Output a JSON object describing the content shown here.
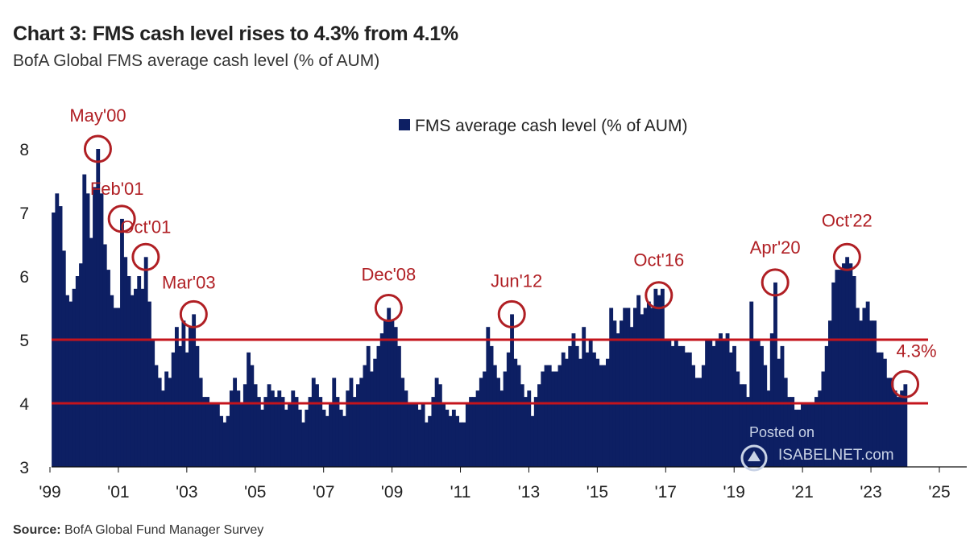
{
  "header": {
    "title": "Chart 3: FMS cash level rises to 4.3% from 4.1%",
    "subtitle": "BofA Global FMS average cash level (% of AUM)"
  },
  "footer": {
    "source_label": "Source:",
    "source_text": "BofA Global Fund Manager Survey"
  },
  "watermark": {
    "posted": "Posted on",
    "brand": "ISABELNET.com"
  },
  "colors": {
    "bars": "#0d1f63",
    "reference_lines": "#c4141c",
    "annotation": "#b01f24"
  },
  "chart_data": {
    "type": "bar",
    "legend": "FMS average cash level (% of AUM)",
    "legend_position": "top-center",
    "ylim": [
      3,
      8
    ],
    "yticks": [
      3,
      4,
      5,
      6,
      7,
      8
    ],
    "xticks": [
      "'99",
      "'01",
      "'03",
      "'05",
      "'07",
      "'09",
      "'11",
      "'13",
      "'15",
      "'17",
      "'19",
      "'21",
      "'23",
      "'25"
    ],
    "xrange": [
      1999.0,
      2025.0
    ],
    "grid": false,
    "reference_lines": [
      4.0,
      5.0
    ],
    "series": [
      {
        "name": "FMS average cash level (% of AUM)",
        "points": [
          [
            1999.1,
            7.0
          ],
          [
            1999.2,
            7.3
          ],
          [
            1999.3,
            7.1
          ],
          [
            1999.4,
            6.4
          ],
          [
            1999.5,
            5.7
          ],
          [
            1999.6,
            5.6
          ],
          [
            1999.7,
            5.8
          ],
          [
            1999.8,
            6.0
          ],
          [
            1999.9,
            6.2
          ],
          [
            2000.0,
            7.6
          ],
          [
            2000.1,
            7.3
          ],
          [
            2000.2,
            6.6
          ],
          [
            2000.3,
            7.4
          ],
          [
            2000.4,
            8.0
          ],
          [
            2000.5,
            7.3
          ],
          [
            2000.6,
            6.5
          ],
          [
            2000.7,
            6.1
          ],
          [
            2000.8,
            5.7
          ],
          [
            2000.9,
            5.5
          ],
          [
            2001.0,
            5.5
          ],
          [
            2001.1,
            6.9
          ],
          [
            2001.2,
            6.3
          ],
          [
            2001.3,
            6.0
          ],
          [
            2001.4,
            5.7
          ],
          [
            2001.5,
            5.8
          ],
          [
            2001.6,
            6.0
          ],
          [
            2001.7,
            5.8
          ],
          [
            2001.8,
            6.3
          ],
          [
            2001.9,
            5.6
          ],
          [
            2002.0,
            5.0
          ],
          [
            2002.1,
            4.6
          ],
          [
            2002.2,
            4.4
          ],
          [
            2002.3,
            4.2
          ],
          [
            2002.4,
            4.5
          ],
          [
            2002.5,
            4.4
          ],
          [
            2002.6,
            4.8
          ],
          [
            2002.7,
            5.2
          ],
          [
            2002.8,
            4.9
          ],
          [
            2002.9,
            5.3
          ],
          [
            2003.0,
            4.8
          ],
          [
            2003.1,
            5.2
          ],
          [
            2003.2,
            5.4
          ],
          [
            2003.3,
            4.9
          ],
          [
            2003.4,
            4.4
          ],
          [
            2003.5,
            4.1
          ],
          [
            2003.6,
            4.1
          ],
          [
            2003.7,
            4.0
          ],
          [
            2003.8,
            4.0
          ],
          [
            2003.9,
            4.0
          ],
          [
            2004.0,
            3.8
          ],
          [
            2004.1,
            3.7
          ],
          [
            2004.2,
            3.8
          ],
          [
            2004.3,
            4.2
          ],
          [
            2004.4,
            4.4
          ],
          [
            2004.5,
            4.2
          ],
          [
            2004.6,
            4.0
          ],
          [
            2004.7,
            4.3
          ],
          [
            2004.8,
            4.8
          ],
          [
            2004.9,
            4.6
          ],
          [
            2005.0,
            4.3
          ],
          [
            2005.1,
            4.1
          ],
          [
            2005.2,
            3.9
          ],
          [
            2005.3,
            4.1
          ],
          [
            2005.4,
            4.3
          ],
          [
            2005.5,
            4.2
          ],
          [
            2005.6,
            4.1
          ],
          [
            2005.7,
            4.2
          ],
          [
            2005.8,
            4.1
          ],
          [
            2005.9,
            3.9
          ],
          [
            2006.0,
            4.0
          ],
          [
            2006.1,
            4.2
          ],
          [
            2006.2,
            4.1
          ],
          [
            2006.3,
            3.9
          ],
          [
            2006.4,
            3.7
          ],
          [
            2006.5,
            3.9
          ],
          [
            2006.6,
            4.1
          ],
          [
            2006.7,
            4.4
          ],
          [
            2006.8,
            4.3
          ],
          [
            2006.9,
            4.1
          ],
          [
            2007.0,
            3.9
          ],
          [
            2007.1,
            3.8
          ],
          [
            2007.2,
            4.0
          ],
          [
            2007.3,
            4.4
          ],
          [
            2007.4,
            4.1
          ],
          [
            2007.5,
            3.9
          ],
          [
            2007.6,
            3.8
          ],
          [
            2007.7,
            4.2
          ],
          [
            2007.8,
            4.4
          ],
          [
            2007.9,
            4.1
          ],
          [
            2008.0,
            4.3
          ],
          [
            2008.1,
            4.4
          ],
          [
            2008.2,
            4.6
          ],
          [
            2008.3,
            4.9
          ],
          [
            2008.4,
            4.5
          ],
          [
            2008.5,
            4.7
          ],
          [
            2008.6,
            4.9
          ],
          [
            2008.7,
            5.1
          ],
          [
            2008.8,
            5.3
          ],
          [
            2008.9,
            5.5
          ],
          [
            2009.0,
            5.3
          ],
          [
            2009.1,
            5.2
          ],
          [
            2009.2,
            4.9
          ],
          [
            2009.3,
            4.4
          ],
          [
            2009.4,
            4.2
          ],
          [
            2009.5,
            4.0
          ],
          [
            2009.6,
            4.0
          ],
          [
            2009.7,
            4.0
          ],
          [
            2009.8,
            3.9
          ],
          [
            2009.9,
            4.0
          ],
          [
            2010.0,
            3.7
          ],
          [
            2010.1,
            3.8
          ],
          [
            2010.2,
            4.1
          ],
          [
            2010.3,
            4.4
          ],
          [
            2010.4,
            4.3
          ],
          [
            2010.5,
            4.0
          ],
          [
            2010.6,
            3.9
          ],
          [
            2010.7,
            3.8
          ],
          [
            2010.8,
            3.9
          ],
          [
            2010.9,
            3.8
          ],
          [
            2011.0,
            3.7
          ],
          [
            2011.1,
            3.7
          ],
          [
            2011.2,
            4.0
          ],
          [
            2011.3,
            4.1
          ],
          [
            2011.4,
            4.1
          ],
          [
            2011.5,
            4.2
          ],
          [
            2011.6,
            4.4
          ],
          [
            2011.7,
            4.5
          ],
          [
            2011.8,
            5.2
          ],
          [
            2011.9,
            4.9
          ],
          [
            2012.0,
            4.6
          ],
          [
            2012.1,
            4.4
          ],
          [
            2012.2,
            4.2
          ],
          [
            2012.3,
            4.5
          ],
          [
            2012.4,
            4.8
          ],
          [
            2012.5,
            5.4
          ],
          [
            2012.6,
            4.7
          ],
          [
            2012.7,
            4.6
          ],
          [
            2012.8,
            4.3
          ],
          [
            2012.9,
            4.1
          ],
          [
            2013.0,
            4.2
          ],
          [
            2013.1,
            3.8
          ],
          [
            2013.2,
            4.1
          ],
          [
            2013.3,
            4.3
          ],
          [
            2013.4,
            4.5
          ],
          [
            2013.5,
            4.6
          ],
          [
            2013.6,
            4.6
          ],
          [
            2013.7,
            4.5
          ],
          [
            2013.8,
            4.5
          ],
          [
            2013.9,
            4.6
          ],
          [
            2014.0,
            4.8
          ],
          [
            2014.1,
            4.7
          ],
          [
            2014.2,
            4.9
          ],
          [
            2014.3,
            5.1
          ],
          [
            2014.4,
            4.9
          ],
          [
            2014.5,
            4.7
          ],
          [
            2014.6,
            5.2
          ],
          [
            2014.7,
            4.8
          ],
          [
            2014.8,
            5.0
          ],
          [
            2014.9,
            4.8
          ],
          [
            2015.0,
            4.7
          ],
          [
            2015.1,
            4.6
          ],
          [
            2015.2,
            4.6
          ],
          [
            2015.3,
            4.7
          ],
          [
            2015.4,
            5.5
          ],
          [
            2015.5,
            5.3
          ],
          [
            2015.6,
            5.1
          ],
          [
            2015.7,
            5.3
          ],
          [
            2015.8,
            5.5
          ],
          [
            2015.9,
            5.5
          ],
          [
            2016.0,
            5.2
          ],
          [
            2016.1,
            5.5
          ],
          [
            2016.2,
            5.7
          ],
          [
            2016.3,
            5.4
          ],
          [
            2016.4,
            5.5
          ],
          [
            2016.5,
            5.6
          ],
          [
            2016.6,
            5.5
          ],
          [
            2016.7,
            5.8
          ],
          [
            2016.8,
            5.7
          ],
          [
            2016.9,
            5.8
          ],
          [
            2017.0,
            5.0
          ],
          [
            2017.1,
            5.0
          ],
          [
            2017.2,
            4.9
          ],
          [
            2017.3,
            5.0
          ],
          [
            2017.4,
            4.9
          ],
          [
            2017.5,
            4.9
          ],
          [
            2017.6,
            4.8
          ],
          [
            2017.7,
            4.8
          ],
          [
            2017.8,
            4.6
          ],
          [
            2017.9,
            4.4
          ],
          [
            2018.0,
            4.4
          ],
          [
            2018.1,
            4.6
          ],
          [
            2018.2,
            5.0
          ],
          [
            2018.3,
            5.0
          ],
          [
            2018.4,
            4.9
          ],
          [
            2018.5,
            5.0
          ],
          [
            2018.6,
            5.1
          ],
          [
            2018.7,
            5.0
          ],
          [
            2018.8,
            5.1
          ],
          [
            2018.9,
            4.8
          ],
          [
            2019.0,
            4.9
          ],
          [
            2019.1,
            4.5
          ],
          [
            2019.2,
            4.3
          ],
          [
            2019.3,
            4.3
          ],
          [
            2019.4,
            4.1
          ],
          [
            2019.5,
            5.6
          ],
          [
            2019.6,
            5.0
          ],
          [
            2019.7,
            5.0
          ],
          [
            2019.8,
            4.9
          ],
          [
            2019.9,
            4.6
          ],
          [
            2020.0,
            4.2
          ],
          [
            2020.1,
            5.1
          ],
          [
            2020.2,
            5.9
          ],
          [
            2020.3,
            4.7
          ],
          [
            2020.4,
            4.9
          ],
          [
            2020.5,
            4.4
          ],
          [
            2020.6,
            4.1
          ],
          [
            2020.7,
            4.1
          ],
          [
            2020.8,
            3.9
          ],
          [
            2020.9,
            3.9
          ],
          [
            2021.0,
            4.0
          ],
          [
            2021.1,
            4.0
          ],
          [
            2021.2,
            4.0
          ],
          [
            2021.3,
            4.0
          ],
          [
            2021.4,
            4.1
          ],
          [
            2021.5,
            4.2
          ],
          [
            2021.6,
            4.5
          ],
          [
            2021.7,
            4.9
          ],
          [
            2021.8,
            5.3
          ],
          [
            2021.9,
            5.9
          ],
          [
            2022.0,
            6.1
          ],
          [
            2022.1,
            6.1
          ],
          [
            2022.2,
            6.2
          ],
          [
            2022.3,
            6.3
          ],
          [
            2022.4,
            6.2
          ],
          [
            2022.5,
            6.0
          ],
          [
            2022.6,
            5.5
          ],
          [
            2022.7,
            5.3
          ],
          [
            2022.8,
            5.5
          ],
          [
            2022.9,
            5.6
          ],
          [
            2023.0,
            5.3
          ],
          [
            2023.1,
            5.3
          ],
          [
            2023.2,
            4.8
          ],
          [
            2023.3,
            4.8
          ],
          [
            2023.4,
            4.7
          ],
          [
            2023.5,
            4.4
          ],
          [
            2023.6,
            4.4
          ],
          [
            2023.7,
            4.2
          ],
          [
            2023.8,
            4.1
          ],
          [
            2023.9,
            4.2
          ],
          [
            2024.0,
            4.3
          ]
        ]
      }
    ],
    "annotations": [
      {
        "label": "May'00",
        "x": 2000.4,
        "y": 8.0
      },
      {
        "label": "Feb'01",
        "x": 2001.1,
        "y": 6.9
      },
      {
        "label": "Oct'01",
        "x": 2001.8,
        "y": 6.3
      },
      {
        "label": "Mar'03",
        "x": 2003.2,
        "y": 5.4
      },
      {
        "label": "Dec'08",
        "x": 2008.9,
        "y": 5.5
      },
      {
        "label": "Jun'12",
        "x": 2012.5,
        "y": 5.4
      },
      {
        "label": "Oct'16",
        "x": 2016.8,
        "y": 5.7
      },
      {
        "label": "Apr'20",
        "x": 2020.2,
        "y": 5.9
      },
      {
        "label": "Oct'22",
        "x": 2022.3,
        "y": 6.3
      },
      {
        "label": "4.3%",
        "x": 2024.0,
        "y": 4.3
      }
    ]
  }
}
